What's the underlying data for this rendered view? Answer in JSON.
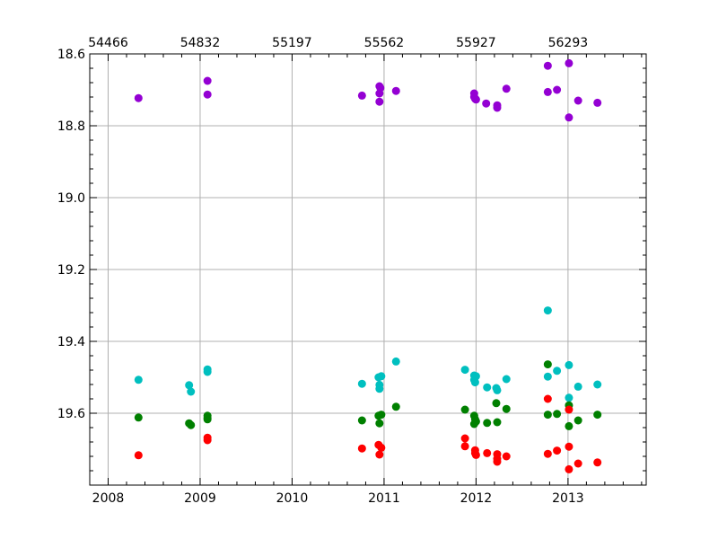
{
  "chart_data": {
    "type": "scatter",
    "title": "",
    "xlabel": "",
    "ylabel": "",
    "xlim": [
      2007.8,
      2013.85
    ],
    "ylim": [
      19.8,
      18.6
    ],
    "y_inverted": true,
    "grid": true,
    "x_ticks": [
      "2008",
      "2009",
      "2010",
      "2011",
      "2012",
      "2013"
    ],
    "x_tick_values": [
      2008,
      2009,
      2010,
      2011,
      2012,
      2013
    ],
    "top_ticks": [
      "54466",
      "54832",
      "55197",
      "55562",
      "55927",
      "56293"
    ],
    "top_tick_values": [
      2008,
      2009,
      2010,
      2011,
      2012,
      2013
    ],
    "y_ticks": [
      "18.6",
      "18.8",
      "19.0",
      "19.2",
      "19.4",
      "19.6"
    ],
    "y_tick_values": [
      18.6,
      18.8,
      19.0,
      19.2,
      19.4,
      19.6
    ],
    "series": [
      {
        "color": "#9400d3",
        "points": [
          [
            2008.33,
            18.723
          ],
          [
            2009.08,
            18.675
          ],
          [
            2009.08,
            18.713
          ],
          [
            2010.76,
            18.716
          ],
          [
            2010.95,
            18.69
          ],
          [
            2010.96,
            18.695
          ],
          [
            2010.95,
            18.71
          ],
          [
            2010.95,
            18.733
          ],
          [
            2011.13,
            18.703
          ],
          [
            2011.98,
            18.71
          ],
          [
            2011.98,
            18.72
          ],
          [
            2011.99,
            18.725
          ],
          [
            2012.0,
            18.727
          ],
          [
            2012.11,
            18.738
          ],
          [
            2012.23,
            18.743
          ],
          [
            2012.23,
            18.75
          ],
          [
            2012.33,
            18.697
          ],
          [
            2012.78,
            18.633
          ],
          [
            2012.78,
            18.706
          ],
          [
            2012.88,
            18.7
          ],
          [
            2013.01,
            18.626
          ],
          [
            2013.01,
            18.777
          ],
          [
            2013.11,
            18.73
          ],
          [
            2013.32,
            18.736
          ]
        ]
      },
      {
        "color": "#00bfbf",
        "points": [
          [
            2008.33,
            19.507
          ],
          [
            2008.88,
            19.522
          ],
          [
            2008.9,
            19.54
          ],
          [
            2009.08,
            19.478
          ],
          [
            2009.08,
            19.485
          ],
          [
            2010.76,
            19.518
          ],
          [
            2010.94,
            19.5
          ],
          [
            2010.97,
            19.497
          ],
          [
            2010.95,
            19.521
          ],
          [
            2010.95,
            19.532
          ],
          [
            2011.13,
            19.456
          ],
          [
            2011.88,
            19.479
          ],
          [
            2011.98,
            19.495
          ],
          [
            2011.98,
            19.507
          ],
          [
            2011.99,
            19.514
          ],
          [
            2012.0,
            19.497
          ],
          [
            2012.12,
            19.528
          ],
          [
            2012.22,
            19.53
          ],
          [
            2012.23,
            19.536
          ],
          [
            2012.33,
            19.505
          ],
          [
            2012.78,
            19.314
          ],
          [
            2012.78,
            19.498
          ],
          [
            2012.88,
            19.482
          ],
          [
            2013.01,
            19.466
          ],
          [
            2013.01,
            19.557
          ],
          [
            2013.11,
            19.526
          ],
          [
            2013.32,
            19.52
          ]
        ]
      },
      {
        "color": "#008000",
        "points": [
          [
            2008.33,
            19.612
          ],
          [
            2008.88,
            19.628
          ],
          [
            2008.9,
            19.633
          ],
          [
            2009.08,
            19.607
          ],
          [
            2009.08,
            19.613
          ],
          [
            2009.08,
            19.617
          ],
          [
            2010.76,
            19.62
          ],
          [
            2010.94,
            19.607
          ],
          [
            2010.97,
            19.604
          ],
          [
            2010.95,
            19.628
          ],
          [
            2011.13,
            19.582
          ],
          [
            2011.88,
            19.59
          ],
          [
            2011.98,
            19.607
          ],
          [
            2011.99,
            19.617
          ],
          [
            2012.0,
            19.623
          ],
          [
            2011.98,
            19.63
          ],
          [
            2012.12,
            19.627
          ],
          [
            2012.22,
            19.572
          ],
          [
            2012.23,
            19.625
          ],
          [
            2012.33,
            19.588
          ],
          [
            2012.78,
            19.464
          ],
          [
            2012.78,
            19.604
          ],
          [
            2012.88,
            19.602
          ],
          [
            2013.01,
            19.578
          ],
          [
            2013.01,
            19.636
          ],
          [
            2013.11,
            19.62
          ],
          [
            2013.32,
            19.604
          ]
        ]
      },
      {
        "color": "#ff0000",
        "points": [
          [
            2008.33,
            19.717
          ],
          [
            2009.08,
            19.668
          ],
          [
            2009.08,
            19.675
          ],
          [
            2010.76,
            19.698
          ],
          [
            2010.94,
            19.688
          ],
          [
            2010.97,
            19.696
          ],
          [
            2010.95,
            19.715
          ],
          [
            2011.88,
            19.67
          ],
          [
            2011.88,
            19.692
          ],
          [
            2011.99,
            19.703
          ],
          [
            2011.99,
            19.711
          ],
          [
            2012.0,
            19.716
          ],
          [
            2012.12,
            19.711
          ],
          [
            2012.23,
            19.714
          ],
          [
            2012.23,
            19.727
          ],
          [
            2012.23,
            19.735
          ],
          [
            2012.33,
            19.72
          ],
          [
            2012.78,
            19.56
          ],
          [
            2012.78,
            19.713
          ],
          [
            2012.88,
            19.704
          ],
          [
            2013.01,
            19.59
          ],
          [
            2013.01,
            19.693
          ],
          [
            2013.01,
            19.756
          ],
          [
            2013.11,
            19.74
          ],
          [
            2013.32,
            19.737
          ]
        ]
      }
    ]
  }
}
